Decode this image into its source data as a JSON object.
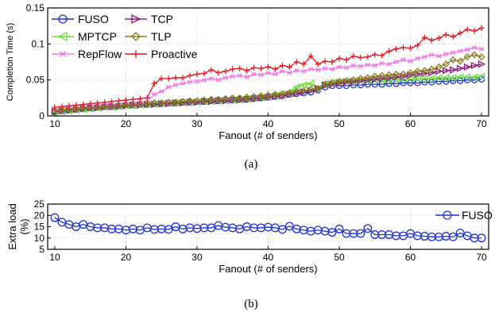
{
  "chart_data": [
    {
      "type": "line",
      "panel_label": "(a)",
      "xlabel": "Fanout (# of senders)",
      "ylabel": "Completion Time (s)",
      "xlim": [
        9,
        71
      ],
      "ylim": [
        0,
        0.15
      ],
      "xticks": [
        "10",
        "20",
        "30",
        "40",
        "50",
        "60",
        "70"
      ],
      "yticks": [
        "0",
        "0.05",
        "0.1",
        "0.15"
      ],
      "grid": true,
      "legend_position": "top-left",
      "x": [
        10,
        11,
        12,
        13,
        14,
        15,
        16,
        17,
        18,
        19,
        20,
        21,
        22,
        23,
        24,
        25,
        26,
        27,
        28,
        29,
        30,
        31,
        32,
        33,
        34,
        35,
        36,
        37,
        38,
        39,
        40,
        41,
        42,
        43,
        44,
        45,
        46,
        47,
        48,
        49,
        50,
        51,
        52,
        53,
        54,
        55,
        56,
        57,
        58,
        59,
        60,
        61,
        62,
        63,
        64,
        65,
        66,
        67,
        68,
        69,
        70
      ],
      "series": [
        {
          "name": "FUSO",
          "color": "#1f2fd6",
          "marker": "circle",
          "values": [
            0.006,
            0.007,
            0.008,
            0.009,
            0.01,
            0.011,
            0.012,
            0.013,
            0.013,
            0.014,
            0.015,
            0.015,
            0.016,
            0.016,
            0.017,
            0.017,
            0.018,
            0.018,
            0.019,
            0.019,
            0.02,
            0.02,
            0.021,
            0.021,
            0.022,
            0.022,
            0.023,
            0.023,
            0.024,
            0.025,
            0.026,
            0.027,
            0.028,
            0.03,
            0.031,
            0.032,
            0.033,
            0.036,
            0.04,
            0.042,
            0.042,
            0.042,
            0.043,
            0.043,
            0.044,
            0.044,
            0.044,
            0.045,
            0.045,
            0.046,
            0.046,
            0.046,
            0.047,
            0.047,
            0.048,
            0.048,
            0.049,
            0.049,
            0.05,
            0.05,
            0.051
          ]
        },
        {
          "name": "MPTCP",
          "color": "#66e033",
          "marker": "triangle-left",
          "values": [
            0.005,
            0.006,
            0.007,
            0.008,
            0.009,
            0.01,
            0.011,
            0.012,
            0.012,
            0.013,
            0.014,
            0.014,
            0.015,
            0.016,
            0.016,
            0.017,
            0.017,
            0.018,
            0.018,
            0.019,
            0.019,
            0.02,
            0.02,
            0.021,
            0.021,
            0.022,
            0.022,
            0.023,
            0.024,
            0.025,
            0.026,
            0.028,
            0.03,
            0.033,
            0.04,
            0.043,
            0.045,
            0.038,
            0.045,
            0.046,
            0.047,
            0.048,
            0.048,
            0.049,
            0.049,
            0.05,
            0.05,
            0.05,
            0.051,
            0.051,
            0.051,
            0.052,
            0.052,
            0.052,
            0.053,
            0.053,
            0.053,
            0.054,
            0.054,
            0.054,
            0.055
          ]
        },
        {
          "name": "RepFlow",
          "color": "#f07ae6",
          "marker": "star",
          "values": [
            0.008,
            0.009,
            0.01,
            0.011,
            0.012,
            0.013,
            0.014,
            0.015,
            0.015,
            0.016,
            0.017,
            0.018,
            0.019,
            0.02,
            0.03,
            0.034,
            0.04,
            0.043,
            0.045,
            0.047,
            0.048,
            0.05,
            0.052,
            0.05,
            0.053,
            0.055,
            0.056,
            0.054,
            0.058,
            0.057,
            0.06,
            0.058,
            0.062,
            0.06,
            0.063,
            0.062,
            0.065,
            0.064,
            0.066,
            0.065,
            0.068,
            0.067,
            0.07,
            0.069,
            0.071,
            0.07,
            0.073,
            0.072,
            0.075,
            0.078,
            0.076,
            0.08,
            0.082,
            0.085,
            0.083,
            0.086,
            0.088,
            0.09,
            0.092,
            0.095,
            0.093
          ]
        },
        {
          "name": "TCP",
          "color": "#8b1a7a",
          "marker": "triangle-right",
          "values": [
            0.006,
            0.007,
            0.008,
            0.009,
            0.01,
            0.011,
            0.011,
            0.012,
            0.013,
            0.013,
            0.014,
            0.015,
            0.015,
            0.016,
            0.016,
            0.017,
            0.017,
            0.018,
            0.018,
            0.019,
            0.019,
            0.02,
            0.02,
            0.021,
            0.021,
            0.022,
            0.022,
            0.023,
            0.024,
            0.025,
            0.026,
            0.027,
            0.028,
            0.03,
            0.031,
            0.033,
            0.035,
            0.038,
            0.043,
            0.044,
            0.046,
            0.047,
            0.048,
            0.049,
            0.05,
            0.051,
            0.052,
            0.053,
            0.054,
            0.055,
            0.057,
            0.058,
            0.059,
            0.06,
            0.062,
            0.063,
            0.064,
            0.066,
            0.068,
            0.07,
            0.072
          ]
        },
        {
          "name": "TLP",
          "color": "#8a7b1a",
          "marker": "diamond",
          "values": [
            0.007,
            0.008,
            0.009,
            0.01,
            0.011,
            0.011,
            0.012,
            0.013,
            0.014,
            0.014,
            0.015,
            0.016,
            0.016,
            0.017,
            0.018,
            0.018,
            0.019,
            0.019,
            0.02,
            0.021,
            0.021,
            0.022,
            0.023,
            0.023,
            0.024,
            0.025,
            0.025,
            0.026,
            0.027,
            0.028,
            0.029,
            0.03,
            0.031,
            0.032,
            0.034,
            0.035,
            0.037,
            0.038,
            0.044,
            0.046,
            0.048,
            0.049,
            0.05,
            0.052,
            0.053,
            0.055,
            0.056,
            0.057,
            0.058,
            0.058,
            0.06,
            0.062,
            0.063,
            0.065,
            0.068,
            0.072,
            0.078,
            0.076,
            0.082,
            0.085,
            0.082
          ]
        },
        {
          "name": "Proactive",
          "color": "#e8141e",
          "marker": "plus",
          "values": [
            0.012,
            0.013,
            0.014,
            0.015,
            0.016,
            0.017,
            0.018,
            0.019,
            0.02,
            0.021,
            0.022,
            0.023,
            0.024,
            0.025,
            0.045,
            0.052,
            0.052,
            0.053,
            0.053,
            0.056,
            0.058,
            0.059,
            0.064,
            0.06,
            0.062,
            0.065,
            0.066,
            0.063,
            0.067,
            0.066,
            0.068,
            0.065,
            0.07,
            0.068,
            0.075,
            0.072,
            0.083,
            0.072,
            0.076,
            0.075,
            0.08,
            0.078,
            0.083,
            0.081,
            0.082,
            0.085,
            0.084,
            0.09,
            0.093,
            0.095,
            0.094,
            0.098,
            0.109,
            0.105,
            0.108,
            0.113,
            0.11,
            0.115,
            0.12,
            0.118,
            0.122
          ]
        }
      ]
    },
    {
      "type": "line",
      "panel_label": "(b)",
      "xlabel": "Fanout (# of senders)",
      "ylabel": [
        "Extra load",
        "(%)"
      ],
      "xlim": [
        9,
        71
      ],
      "ylim": [
        5,
        25
      ],
      "xticks": [
        "10",
        "20",
        "30",
        "40",
        "50",
        "60",
        "70"
      ],
      "yticks": [
        "5",
        "10",
        "15",
        "20",
        "25"
      ],
      "grid": true,
      "legend_position": "top-right",
      "x": [
        10,
        11,
        12,
        13,
        14,
        15,
        16,
        17,
        18,
        19,
        20,
        21,
        22,
        23,
        24,
        25,
        26,
        27,
        28,
        29,
        30,
        31,
        32,
        33,
        34,
        35,
        36,
        37,
        38,
        39,
        40,
        41,
        42,
        43,
        44,
        45,
        46,
        47,
        48,
        49,
        50,
        51,
        52,
        53,
        54,
        55,
        56,
        57,
        58,
        59,
        60,
        61,
        62,
        63,
        64,
        65,
        66,
        67,
        68,
        69,
        70
      ],
      "series": [
        {
          "name": "FUSO",
          "color": "#1f2fd6",
          "marker": "circle",
          "values": [
            19.0,
            17.0,
            16.0,
            15.0,
            16.0,
            15.0,
            14.5,
            14.5,
            14.0,
            14.0,
            13.5,
            14.0,
            13.5,
            14.5,
            13.8,
            14.0,
            13.8,
            15.0,
            14.0,
            14.5,
            14.2,
            14.5,
            14.5,
            15.5,
            14.8,
            14.5,
            14.0,
            15.0,
            14.5,
            14.5,
            14.8,
            14.5,
            13.8,
            15.2,
            14.0,
            13.5,
            13.0,
            13.5,
            13.0,
            12.5,
            14.0,
            12.0,
            12.0,
            12.0,
            14.2,
            11.5,
            11.5,
            11.5,
            11.0,
            11.0,
            12.0,
            11.0,
            10.8,
            10.5,
            10.5,
            10.8,
            10.5,
            12.2,
            11.0,
            10.0,
            10.0
          ]
        }
      ]
    }
  ]
}
